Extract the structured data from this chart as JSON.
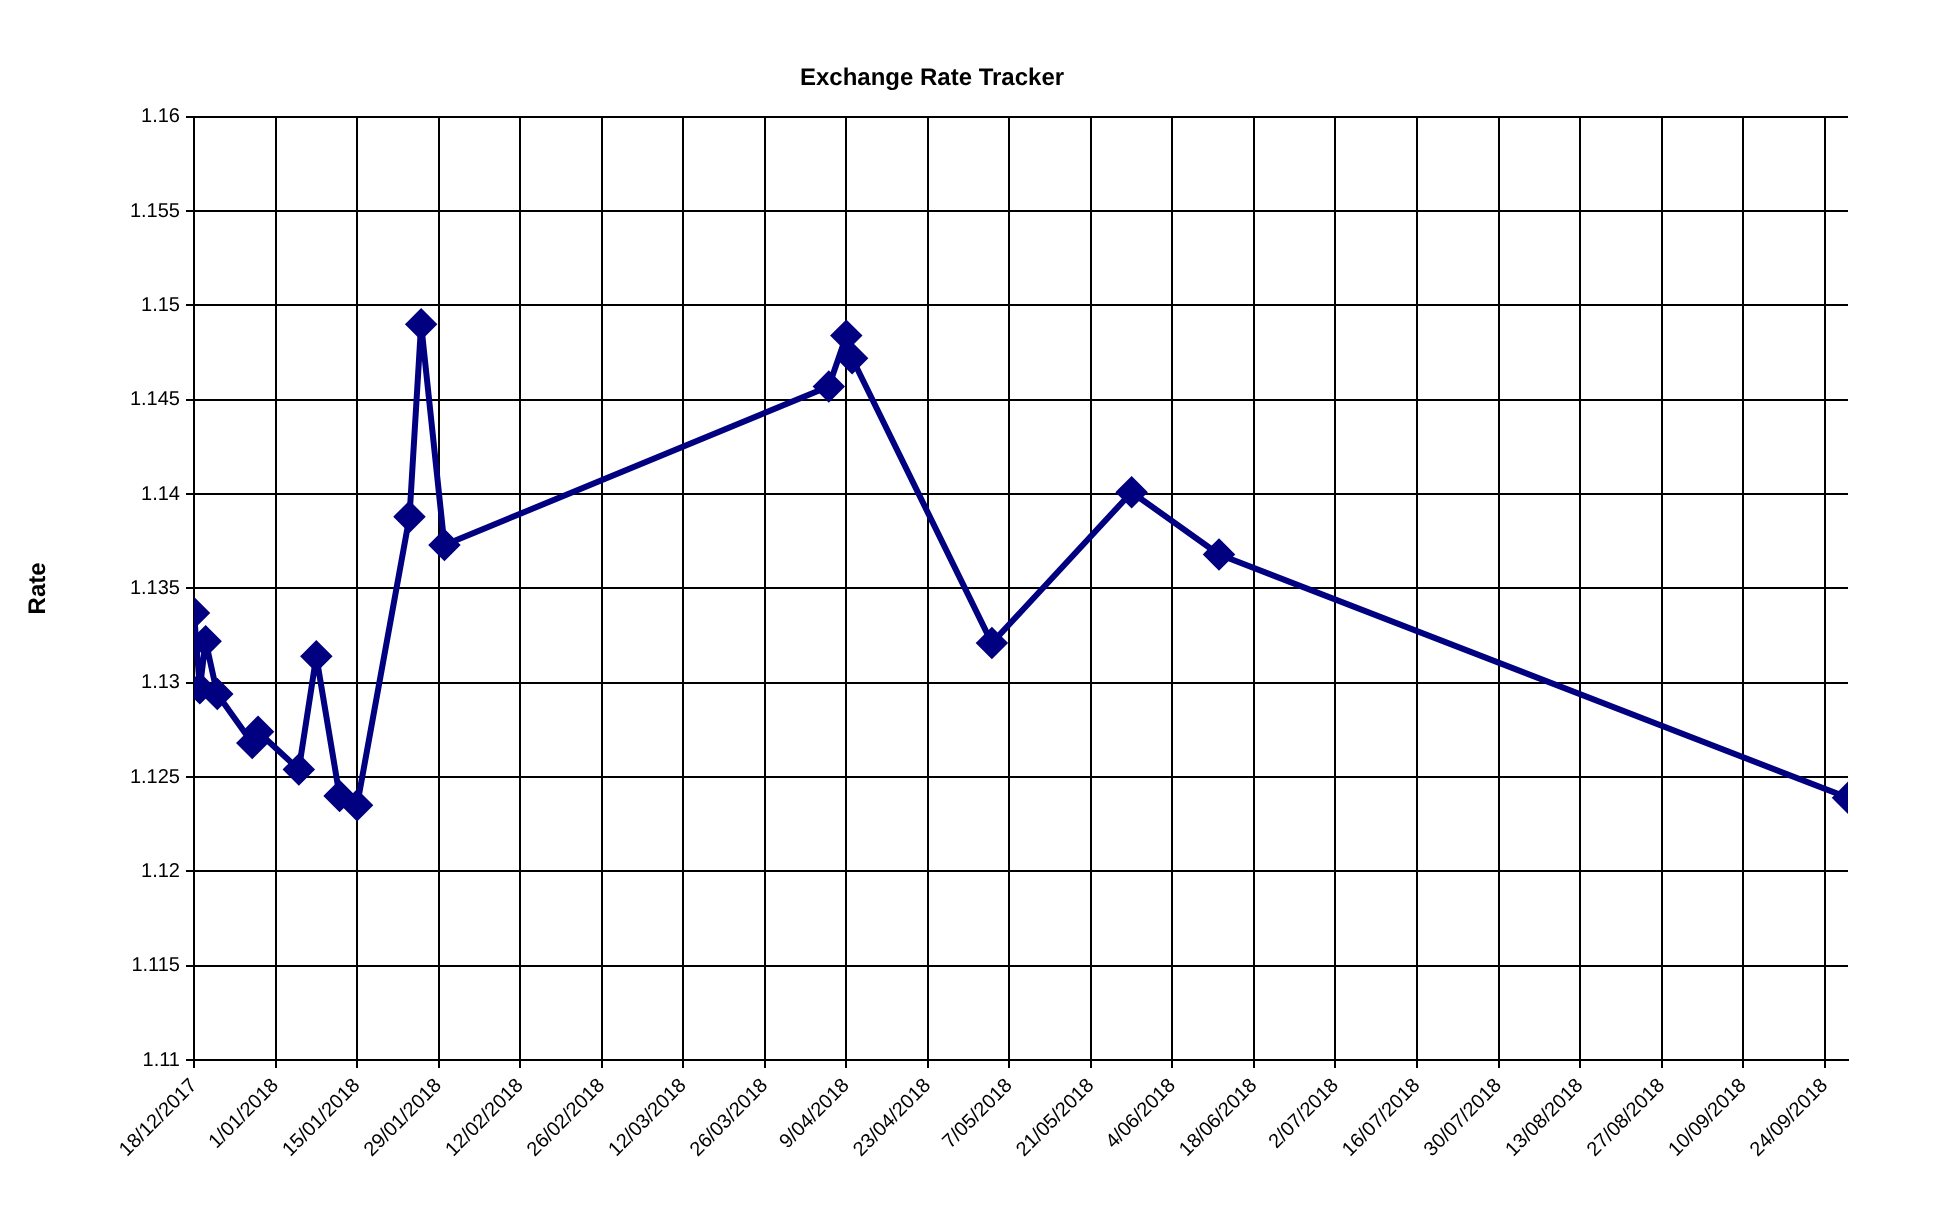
{
  "chart_data": {
    "type": "line",
    "title": "Exchange Rate Tracker",
    "ylabel": "Rate",
    "x": [
      "2017-12-18",
      "2017-12-19",
      "2017-12-20",
      "2017-12-22",
      "2017-12-28",
      "2017-12-29",
      "2018-01-05",
      "2018-01-08",
      "2018-01-12",
      "2018-01-15",
      "2018-01-24",
      "2018-01-26",
      "2018-01-30",
      "2018-04-06",
      "2018-04-09",
      "2018-04-10",
      "2018-05-04",
      "2018-05-28",
      "2018-06-12",
      "2018-09-28"
    ],
    "series": [
      {
        "color": "#000080",
        "values": [
          1.1337,
          1.1297,
          1.1322,
          1.1294,
          1.1268,
          1.1274,
          1.1254,
          1.1314,
          1.124,
          1.1235,
          1.1388,
          1.149,
          1.1373,
          1.1457,
          1.1484,
          1.1472,
          1.1321,
          1.1401,
          1.1368,
          1.1239
        ]
      }
    ],
    "xlim": [
      "2017-12-18",
      "2018-09-28"
    ],
    "xticks": [
      {
        "value": "2017-12-18",
        "label": "18/12/2017"
      },
      {
        "value": "2018-01-01",
        "label": "1/01/2018"
      },
      {
        "value": "2018-01-15",
        "label": "15/01/2018"
      },
      {
        "value": "2018-01-29",
        "label": "29/01/2018"
      },
      {
        "value": "2018-02-12",
        "label": "12/02/2018"
      },
      {
        "value": "2018-02-26",
        "label": "26/02/2018"
      },
      {
        "value": "2018-03-12",
        "label": "12/03/2018"
      },
      {
        "value": "2018-03-26",
        "label": "26/03/2018"
      },
      {
        "value": "2018-04-09",
        "label": "9/04/2018"
      },
      {
        "value": "2018-04-23",
        "label": "23/04/2018"
      },
      {
        "value": "2018-05-07",
        "label": "7/05/2018"
      },
      {
        "value": "2018-05-21",
        "label": "21/05/2018"
      },
      {
        "value": "2018-06-04",
        "label": "4/06/2018"
      },
      {
        "value": "2018-06-18",
        "label": "18/06/2018"
      },
      {
        "value": "2018-07-02",
        "label": "2/07/2018"
      },
      {
        "value": "2018-07-16",
        "label": "16/07/2018"
      },
      {
        "value": "2018-07-30",
        "label": "30/07/2018"
      },
      {
        "value": "2018-08-13",
        "label": "13/08/2018"
      },
      {
        "value": "2018-08-27",
        "label": "27/08/2018"
      },
      {
        "value": "2018-09-10",
        "label": "10/09/2018"
      },
      {
        "value": "2018-09-24",
        "label": "24/09/2018"
      }
    ],
    "ylim": [
      1.11,
      1.16
    ],
    "yticks": [
      1.11,
      1.115,
      1.12,
      1.125,
      1.13,
      1.135,
      1.14,
      1.145,
      1.15,
      1.155,
      1.16
    ],
    "grid": true,
    "marker": "diamond",
    "line_style": "solid"
  }
}
